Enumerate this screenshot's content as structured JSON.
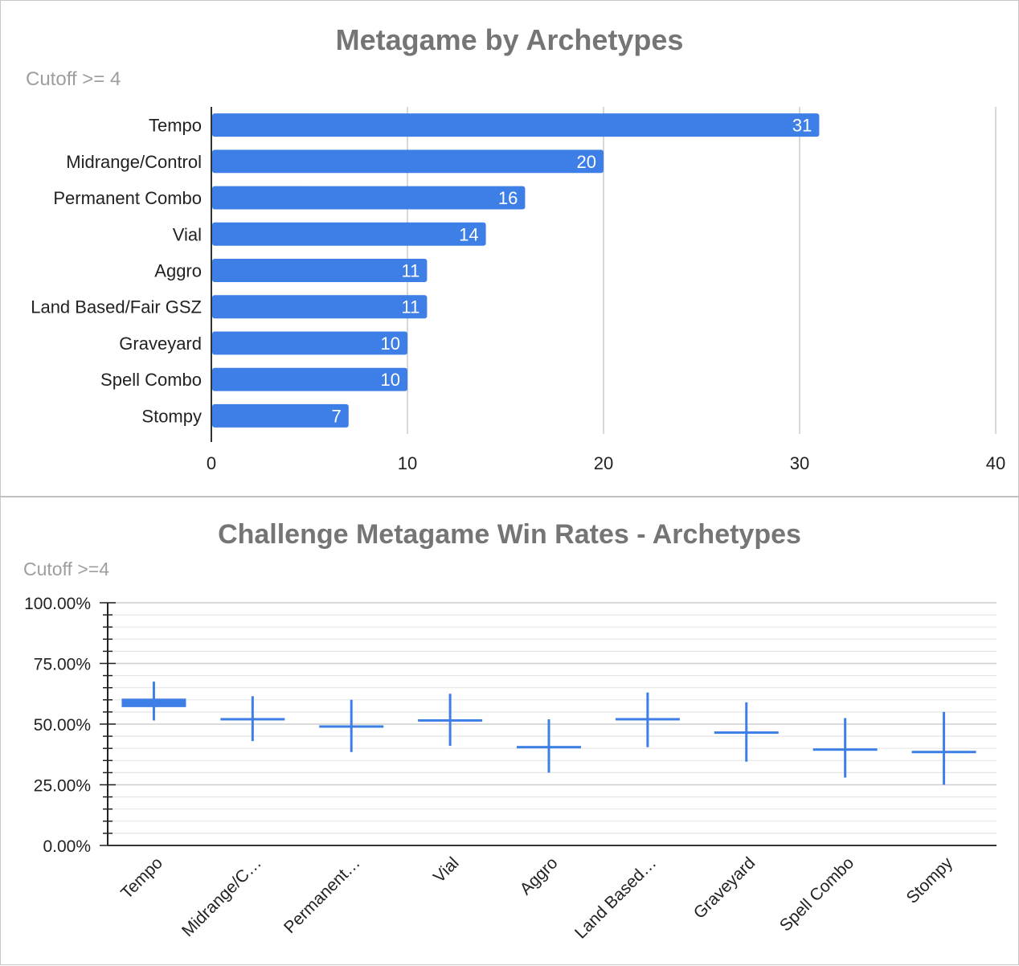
{
  "chart_data": [
    {
      "type": "bar",
      "title": "Metagame by Archetypes",
      "subtitle": "Cutoff >= 4",
      "orientation": "horizontal",
      "categories": [
        "Tempo",
        "Midrange/Control",
        "Permanent Combo",
        "Vial",
        "Aggro",
        "Land Based/Fair GSZ",
        "Graveyard",
        "Spell Combo",
        "Stompy"
      ],
      "values": [
        31,
        20,
        16,
        14,
        11,
        11,
        10,
        10,
        7
      ],
      "xlim": [
        0,
        40
      ],
      "xticks": [
        "0",
        "10",
        "20",
        "30",
        "40"
      ],
      "data_labels": true,
      "grid": true,
      "color": "#3d7fe6"
    },
    {
      "type": "candlestick",
      "title": "Challenge Metagame Win Rates - Archetypes",
      "subtitle": "Cutoff >=4",
      "categories": [
        "Tempo",
        "Midrange/C…",
        "Permanent…",
        "Vial",
        "Aggro",
        "Land Based…",
        "Graveyard",
        "Spell Combo",
        "Stompy"
      ],
      "series": [
        {
          "low": 51.5,
          "open": 57.0,
          "close": 60.5,
          "high": 67.5
        },
        {
          "low": 43.0,
          "open": 52.0,
          "close": 52.5,
          "high": 61.5
        },
        {
          "low": 38.5,
          "open": 49.0,
          "close": 49.5,
          "high": 60.0
        },
        {
          "low": 41.0,
          "open": 51.5,
          "close": 52.0,
          "high": 62.5
        },
        {
          "low": 30.0,
          "open": 40.5,
          "close": 41.0,
          "high": 52.0
        },
        {
          "low": 40.5,
          "open": 52.0,
          "close": 52.5,
          "high": 63.0
        },
        {
          "low": 34.5,
          "open": 46.5,
          "close": 47.0,
          "high": 59.0
        },
        {
          "low": 28.0,
          "open": 39.5,
          "close": 40.0,
          "high": 52.5
        },
        {
          "low": 25.0,
          "open": 38.5,
          "close": 39.0,
          "high": 55.0
        }
      ],
      "ylim": [
        0,
        100
      ],
      "yticks": [
        "0.00%",
        "25.00%",
        "50.00%",
        "75.00%",
        "100.00%"
      ],
      "grid": true,
      "color": "#3d7fe6"
    }
  ]
}
